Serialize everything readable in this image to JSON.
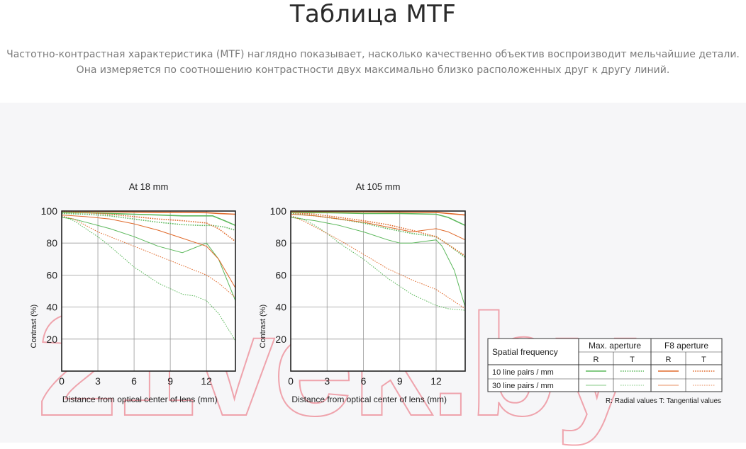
{
  "header": {
    "title": "Таблица MTF",
    "description_line1": "Частотно-контрастная характеристика (MTF) наглядно показывает, насколько качественно объектив воспроизводит мельчайшие детали.",
    "description_line2": "Она измеряется по соотношению контрастности двух максимально близко расположенных друг к другу линий."
  },
  "watermark": "21vek.by",
  "colors": {
    "max_aperture": "#5cb85c",
    "f8_aperture": "#e06a2b",
    "panel_bg": "#f6f6f8"
  },
  "legend": {
    "header_label": "Spatial frequency",
    "col_max": "Max. aperture",
    "col_f8": "F8 aperture",
    "r": "R",
    "t": "T",
    "row1": "10 line pairs / mm",
    "row2": "30 line pairs / mm",
    "note": "R: Radial values  T: Tangential values"
  },
  "chart_data": [
    {
      "type": "line",
      "title": "At 18 mm",
      "xlabel": "Distance from optical center of lens (mm)",
      "ylabel": "Contrast (%)",
      "xlim": [
        0,
        14.4
      ],
      "ylim": [
        0,
        100
      ],
      "xticks": [
        "0",
        "3",
        "6",
        "9",
        "12"
      ],
      "yticks": [
        "20",
        "40",
        "60",
        "80",
        "100"
      ],
      "grid": true,
      "series": [
        {
          "name": "10 line pairs / mm · Max. aperture · R",
          "color": "#5cb85c",
          "dash": "solid",
          "width": 1.6,
          "x": [
            0,
            2,
            4,
            6,
            8,
            10,
            11.5,
            12.5,
            13.5,
            14.4
          ],
          "y": [
            99,
            99,
            98.5,
            98,
            97.5,
            97,
            97,
            97,
            94,
            91
          ]
        },
        {
          "name": "10 line pairs / mm · Max. aperture · T",
          "color": "#5cb85c",
          "dash": "dotted",
          "width": 1.6,
          "x": [
            0,
            2,
            4,
            6,
            8,
            10,
            11.5,
            12.5,
            13.5,
            14.4
          ],
          "y": [
            98.5,
            98,
            97,
            95,
            93,
            91.5,
            91,
            91,
            90,
            88
          ]
        },
        {
          "name": "10 line pairs / mm · F8 aperture · R",
          "color": "#e06a2b",
          "dash": "solid",
          "width": 1.6,
          "x": [
            0,
            2,
            4,
            6,
            8,
            10,
            12,
            13,
            14.4
          ],
          "y": [
            100,
            99.8,
            99.5,
            99.3,
            99.2,
            99.1,
            99,
            98.5,
            98
          ]
        },
        {
          "name": "10 line pairs / mm · F8 aperture · T",
          "color": "#e06a2b",
          "dash": "dotted",
          "width": 1.6,
          "x": [
            0,
            2,
            4,
            6,
            8,
            10,
            12,
            13,
            14.4
          ],
          "y": [
            99.5,
            99,
            98,
            96.5,
            95,
            94,
            92.5,
            89,
            81
          ]
        },
        {
          "name": "30 line pairs / mm · Max. aperture · R",
          "color": "#5cb85c",
          "dash": "solid",
          "width": 1,
          "x": [
            0,
            1,
            2,
            4,
            6,
            8,
            10,
            11,
            12,
            13,
            14.4
          ],
          "y": [
            96,
            95,
            93,
            89,
            84,
            78,
            74,
            77,
            80,
            70,
            44
          ]
        },
        {
          "name": "30 line pairs / mm · Max. aperture · T",
          "color": "#5cb85c",
          "dash": "dotted",
          "width": 1,
          "x": [
            0,
            1,
            2,
            3,
            4,
            6,
            8,
            10,
            11,
            12,
            13,
            14.4
          ],
          "y": [
            97,
            94,
            89,
            84,
            78,
            65,
            55,
            48,
            47,
            44,
            36,
            19
          ]
        },
        {
          "name": "30 line pairs / mm · F8 aperture · R",
          "color": "#e06a2b",
          "dash": "solid",
          "width": 1,
          "x": [
            0,
            2,
            4,
            6,
            8,
            10,
            12,
            13,
            14.4
          ],
          "y": [
            97.5,
            96.5,
            95,
            92,
            88,
            83,
            78,
            70,
            52
          ]
        },
        {
          "name": "30 line pairs / mm · F8 aperture · T",
          "color": "#e06a2b",
          "dash": "dotted",
          "width": 1,
          "x": [
            0,
            1,
            2,
            3,
            4,
            6,
            8,
            10,
            12,
            13,
            14.4
          ],
          "y": [
            97,
            95,
            91,
            87,
            84,
            78,
            72,
            66,
            60,
            55,
            46
          ]
        }
      ]
    },
    {
      "type": "line",
      "title": "At 105 mm",
      "xlabel": "Distance from optical center of lens (mm)",
      "ylabel": "Contrast (%)",
      "xlim": [
        0,
        14.4
      ],
      "ylim": [
        0,
        100
      ],
      "xticks": [
        "0",
        "3",
        "6",
        "9",
        "12"
      ],
      "yticks": [
        "20",
        "40",
        "60",
        "80",
        "100"
      ],
      "grid": true,
      "series": [
        {
          "name": "10 line pairs / mm · Max. aperture · R",
          "color": "#5cb85c",
          "dash": "solid",
          "width": 1.6,
          "x": [
            0,
            3,
            6,
            9,
            12,
            13,
            14.4
          ],
          "y": [
            99,
            99,
            98.5,
            98.5,
            98,
            96,
            91
          ]
        },
        {
          "name": "10 line pairs / mm · Max. aperture · T",
          "color": "#5cb85c",
          "dash": "dotted",
          "width": 1.6,
          "x": [
            0,
            2,
            4,
            6,
            8,
            10,
            12,
            13,
            14.4
          ],
          "y": [
            98.5,
            97,
            95,
            92.5,
            89,
            86,
            84,
            79,
            71
          ]
        },
        {
          "name": "10 line pairs / mm · F8 aperture · R",
          "color": "#e06a2b",
          "dash": "solid",
          "width": 1.6,
          "x": [
            0,
            3,
            6,
            9,
            12,
            13,
            14.4
          ],
          "y": [
            99.8,
            99.6,
            99.5,
            99.4,
            99.2,
            98.5,
            97.5
          ]
        },
        {
          "name": "10 line pairs / mm · F8 aperture · T",
          "color": "#e06a2b",
          "dash": "dotted",
          "width": 1.6,
          "x": [
            0,
            2,
            4,
            6,
            8,
            10,
            12,
            13,
            14.4
          ],
          "y": [
            99,
            98,
            96,
            94,
            91.5,
            88,
            84,
            79,
            72
          ]
        },
        {
          "name": "30 line pairs / mm · Max. aperture · R",
          "color": "#5cb85c",
          "dash": "solid",
          "width": 1,
          "x": [
            0,
            2,
            4,
            6,
            8,
            9,
            10,
            11,
            12,
            12.5,
            13.5,
            14.4
          ],
          "y": [
            96,
            94,
            91,
            87,
            82,
            80,
            80,
            81,
            82,
            78,
            63,
            40
          ]
        },
        {
          "name": "30 line pairs / mm · Max. aperture · T",
          "color": "#5cb85c",
          "dash": "dotted",
          "width": 1,
          "x": [
            0,
            1,
            2,
            3,
            4,
            6,
            8,
            10,
            12,
            13,
            14.4
          ],
          "y": [
            97,
            95,
            91,
            86,
            80,
            70,
            58,
            48,
            41,
            39,
            38
          ]
        },
        {
          "name": "30 line pairs / mm · F8 aperture · R",
          "color": "#e06a2b",
          "dash": "solid",
          "width": 1,
          "x": [
            0,
            2,
            4,
            6,
            8,
            10,
            11,
            12,
            13,
            14.4
          ],
          "y": [
            98,
            97,
            95,
            93,
            90,
            87,
            88,
            89,
            87,
            82
          ]
        },
        {
          "name": "30 line pairs / mm · F8 aperture · T",
          "color": "#e06a2b",
          "dash": "dotted",
          "width": 1,
          "x": [
            0,
            1,
            2,
            4,
            6,
            8,
            10,
            12,
            13,
            14.4
          ],
          "y": [
            97,
            94,
            90,
            82,
            73,
            64,
            57,
            51,
            46,
            39
          ]
        }
      ]
    }
  ]
}
